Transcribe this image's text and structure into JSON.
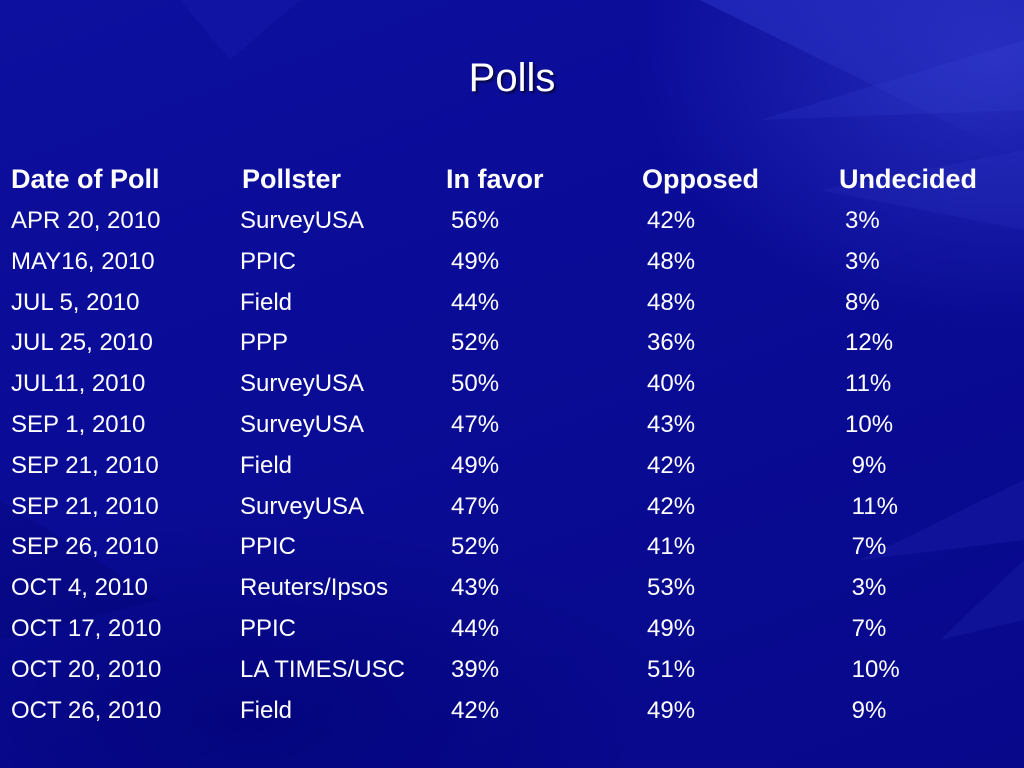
{
  "slide": {
    "title": "Polls"
  },
  "table": {
    "headers": {
      "date": "Date of Poll",
      "pollster": "Pollster",
      "in_favor": "In favor",
      "opposed": "Opposed",
      "undecided": "Undecided"
    },
    "rows": [
      {
        "date": "APR 20, 2010",
        "pollster": "SurveyUSA",
        "in_favor": "56%",
        "opposed": "42%",
        "undecided": "3%"
      },
      {
        "date": "MAY16, 2010",
        "pollster": "PPIC",
        "in_favor": "49%",
        "opposed": "48%",
        "undecided": "3%"
      },
      {
        "date": "JUL 5, 2010",
        "pollster": "Field",
        "in_favor": "44%",
        "opposed": "48%",
        "undecided": "8%"
      },
      {
        "date": "JUL 25, 2010",
        "pollster": "PPP",
        "in_favor": "52%",
        "opposed": "36%",
        "undecided": "12%"
      },
      {
        "date": "JUL11, 2010",
        "pollster": "SurveyUSA",
        "in_favor": "50%",
        "opposed": "40%",
        "undecided": "11%"
      },
      {
        "date": "SEP 1, 2010",
        "pollster": "SurveyUSA",
        "in_favor": "47%",
        "opposed": "43%",
        "undecided": "10%"
      },
      {
        "date": "SEP 21, 2010",
        "pollster": "Field",
        "in_favor": "49%",
        "opposed": "42%",
        "undecided": " 9%"
      },
      {
        "date": "SEP 21, 2010",
        "pollster": "SurveyUSA",
        "in_favor": "47%",
        "opposed": "42%",
        "undecided": " 11%"
      },
      {
        "date": "SEP 26, 2010",
        "pollster": "PPIC",
        "in_favor": "52%",
        "opposed": "41%",
        "undecided": " 7%"
      },
      {
        "date": "OCT 4, 2010",
        "pollster": "Reuters/Ipsos",
        "in_favor": "43%",
        "opposed": "53%",
        "undecided": " 3%"
      },
      {
        "date": "OCT 17, 2010",
        "pollster": "PPIC",
        "in_favor": "44%",
        "opposed": "49%",
        "undecided": " 7%"
      },
      {
        "date": "OCT 20, 2010",
        "pollster": "LA TIMES/USC",
        "in_favor": "39%",
        "opposed": "51%",
        "undecided": " 10%"
      },
      {
        "date": "OCT 26, 2010",
        "pollster": "Field",
        "in_favor": "42%",
        "opposed": "49%",
        "undecided": " 9%"
      }
    ]
  },
  "colors": {
    "background": "#0b0b9a",
    "text": "#ffffff"
  }
}
